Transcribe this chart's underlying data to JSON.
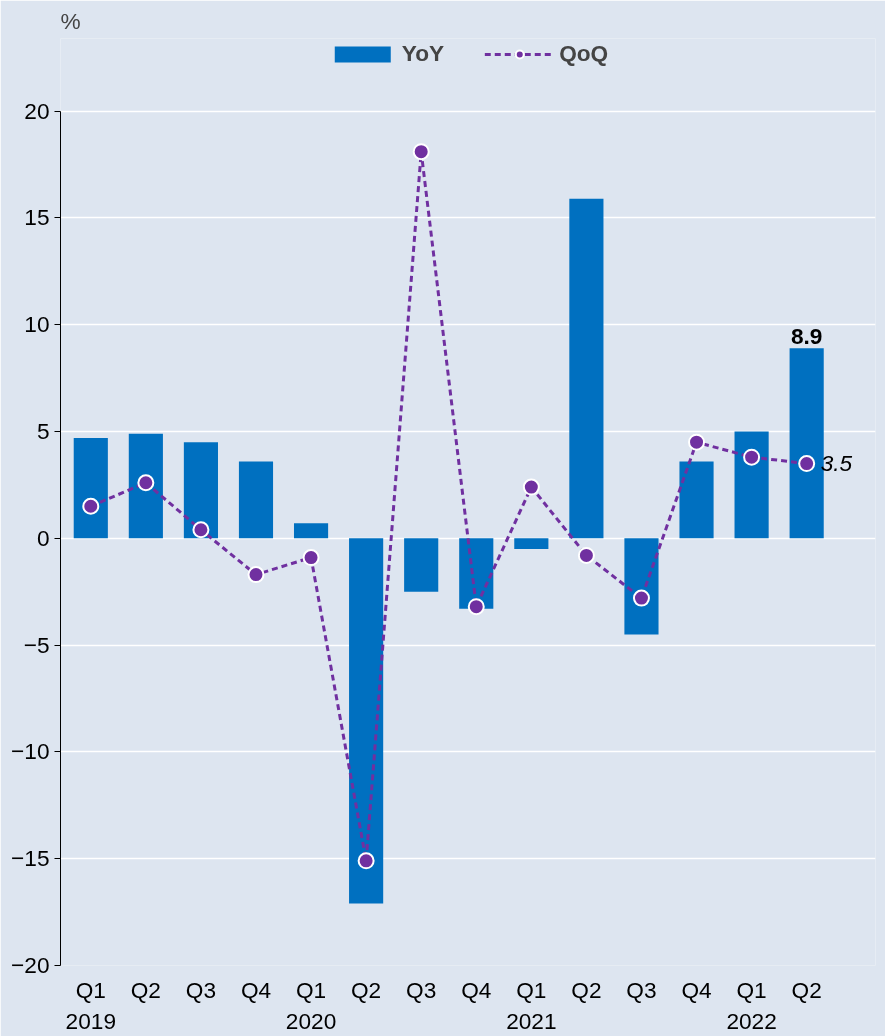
{
  "chart_data": {
    "type": "bar",
    "ylabel": "%",
    "categories": [
      "Q1\n2019",
      "Q2",
      "Q3",
      "Q4",
      "Q1\n2020",
      "Q2",
      "Q3",
      "Q4",
      "Q1\n2021",
      "Q2",
      "Q3",
      "Q4",
      "Q1\n2022",
      "Q2"
    ],
    "series": [
      {
        "name": "YoY",
        "color": "#0070c0",
        "values": [
          4.7,
          4.9,
          4.5,
          3.6,
          0.7,
          -17.1,
          -2.5,
          -3.3,
          -0.5,
          15.9,
          -4.5,
          3.6,
          5.0,
          8.9
        ],
        "value_labels": [
          null,
          null,
          null,
          null,
          null,
          null,
          null,
          null,
          null,
          null,
          null,
          null,
          null,
          "8.9"
        ]
      },
      {
        "name": "QoQ",
        "type": "line",
        "color": "#7030a0",
        "marker": "circle",
        "line_style": "dashed",
        "values": [
          1.5,
          2.6,
          0.4,
          -1.7,
          -0.9,
          -15.1,
          18.1,
          -3.2,
          2.4,
          -0.8,
          -2.8,
          4.5,
          3.8,
          3.5
        ],
        "value_labels": [
          null,
          null,
          null,
          null,
          null,
          null,
          null,
          null,
          null,
          null,
          null,
          null,
          null,
          "3.5"
        ]
      }
    ],
    "ylim": [
      -20,
      20
    ],
    "yticks": [
      -20,
      -15,
      -10,
      -5,
      0,
      5,
      10,
      15,
      20
    ],
    "grid": "y",
    "legend": "top"
  }
}
